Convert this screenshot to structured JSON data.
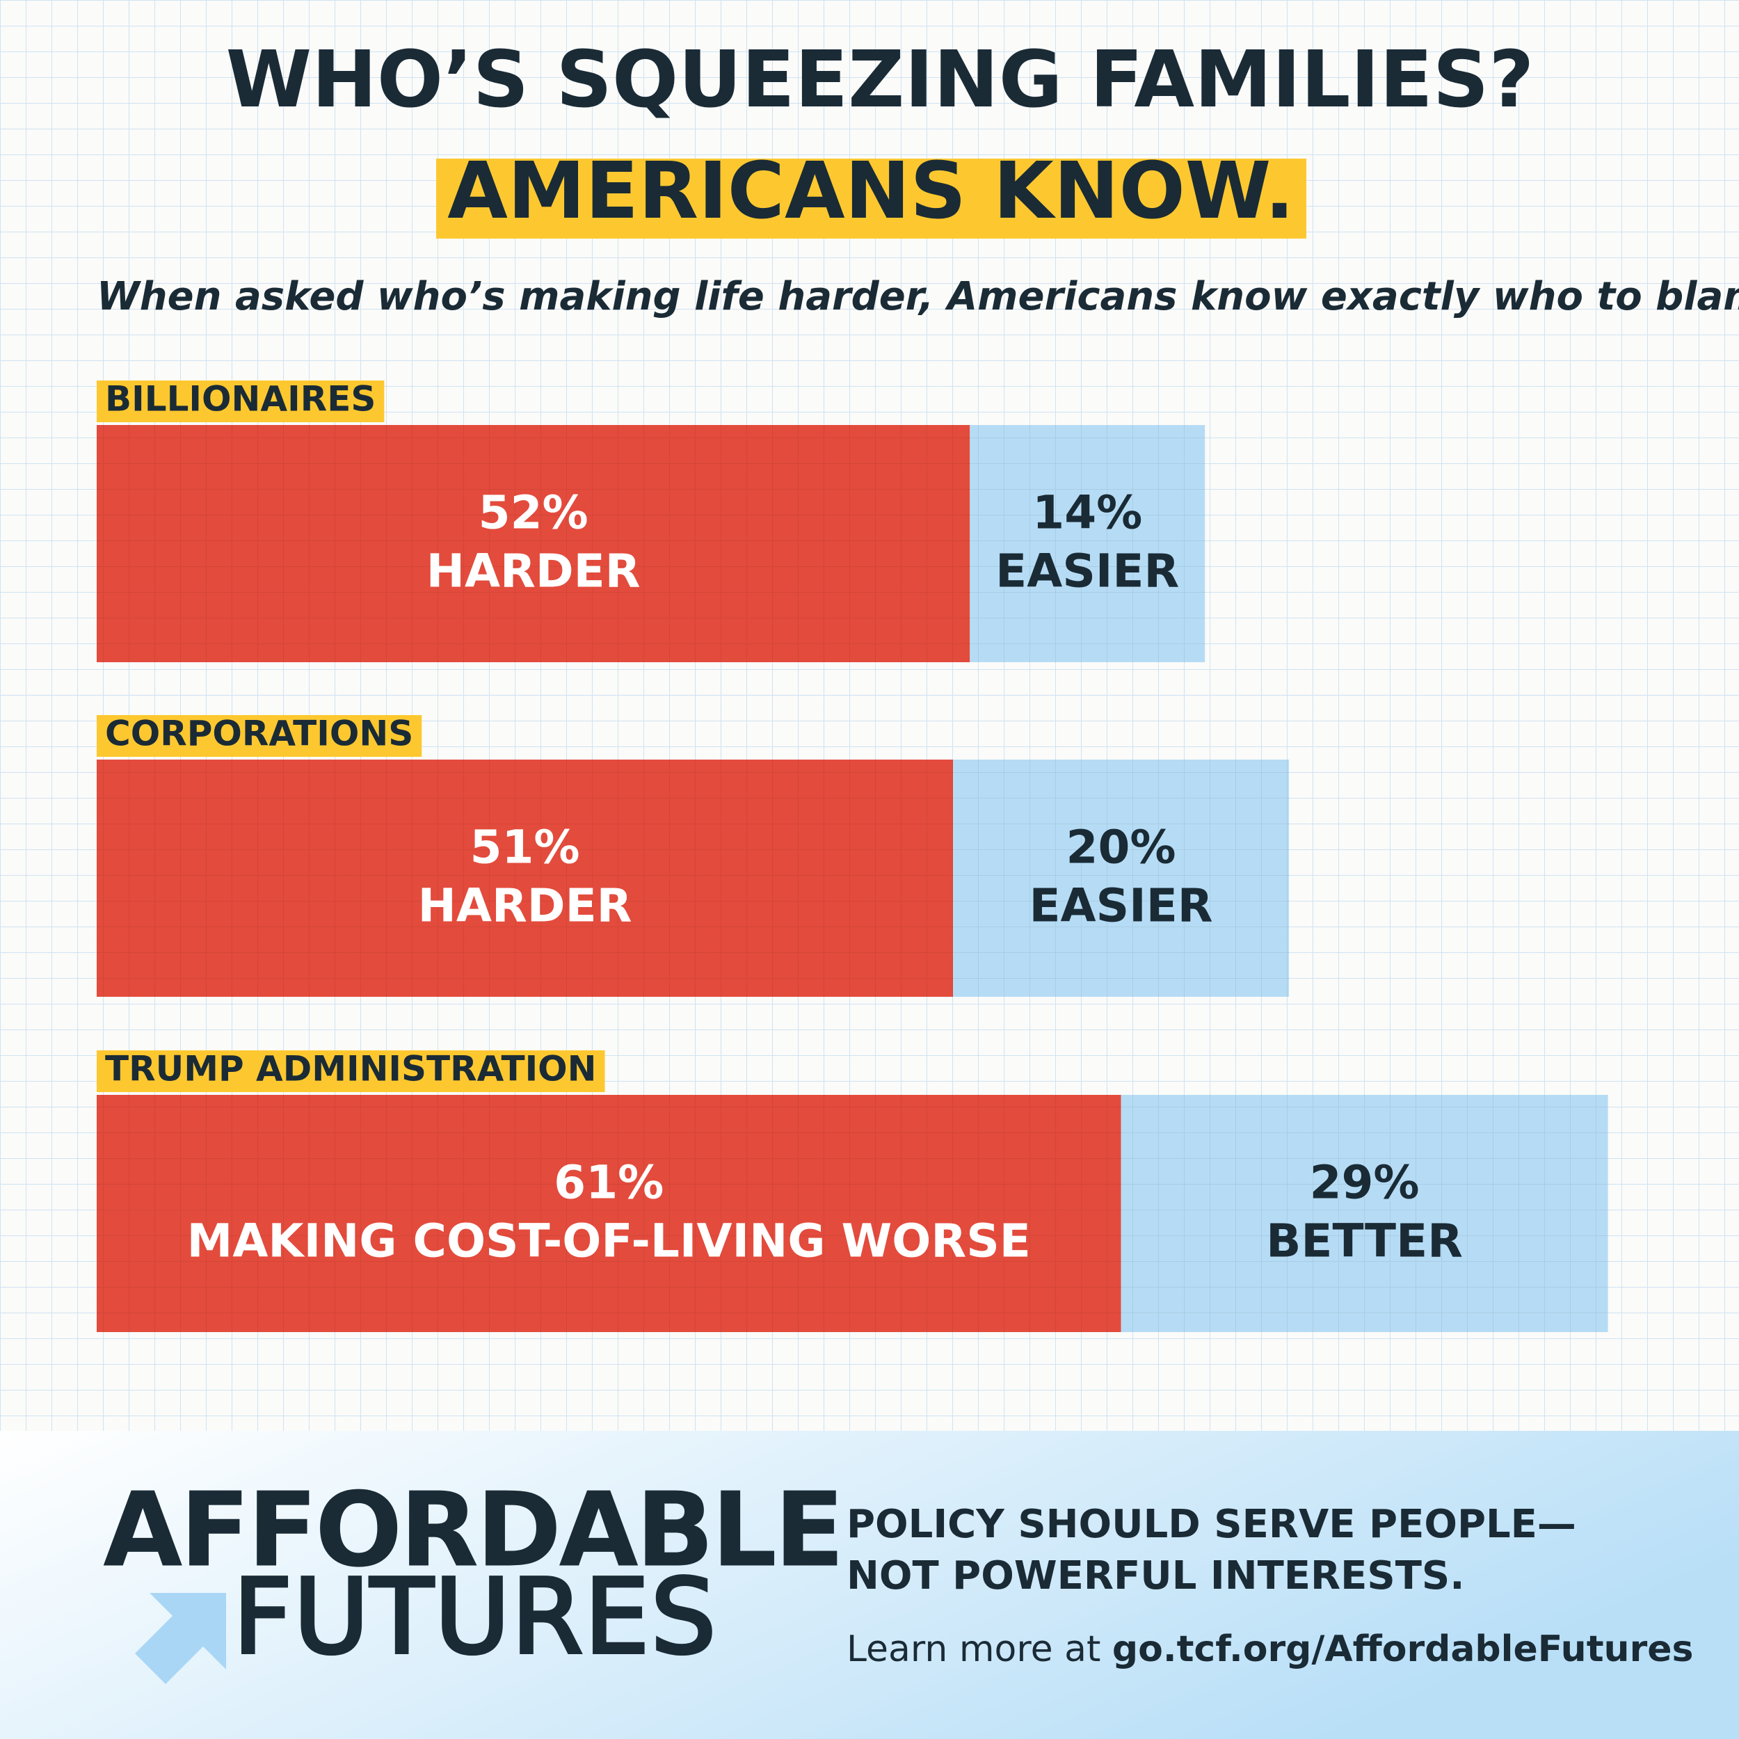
{
  "chart_data": {
    "type": "stacked-bar-horizontal",
    "title": "WHO’S SQUEEZING FAMILIES?",
    "headline": "AMERICANS KNOW.",
    "subtitle": "When asked who’s making life harder, Americans know exactly who to blame.",
    "categories": [
      "BILLIONAIRES",
      "CORPORATIONS",
      "TRUMP ADMINISTRATION"
    ],
    "series": [
      {
        "color": "#e34b3c",
        "label_color": "#ffffff",
        "values": [
          52,
          51,
          61
        ],
        "value_labels": [
          "52%",
          "51%",
          "61%"
        ],
        "labels": [
          "HARDER",
          "HARDER",
          "MAKING COST-OF-LIVING WORSE"
        ]
      },
      {
        "color": "#b6dcf5",
        "label_color": "#1a2b36",
        "values": [
          14,
          20,
          29
        ],
        "value_labels": [
          "14%",
          "20%",
          "29%"
        ],
        "labels": [
          "EASIER",
          "EASIER",
          "BETTER"
        ]
      }
    ]
  },
  "footer": {
    "logo_top": "AFFORDABLE",
    "logo_bottom": "FUTURES",
    "tagline": [
      "POLICY SHOULD SERVE PEOPLE—",
      "NOT POWERFUL INTERESTS."
    ],
    "learn_prefix": "Learn more at ",
    "learn_link": "go.tcf.org/AffordableFutures"
  }
}
